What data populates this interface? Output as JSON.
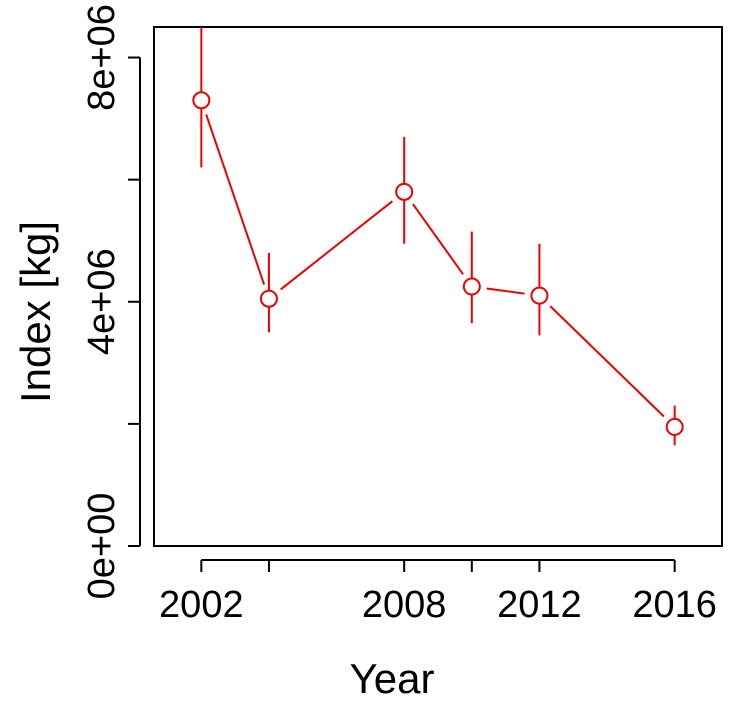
{
  "chart_data": {
    "type": "line",
    "title": "",
    "xlabel": "Year",
    "ylabel": "Index [kg]",
    "xlim": [
      2000.6,
      2017.4
    ],
    "ylim": [
      0,
      8500000
    ],
    "x_ticks": [
      {
        "value": 2002,
        "label": "2002"
      },
      {
        "value": 2004,
        "label": ""
      },
      {
        "value": 2008,
        "label": "2008"
      },
      {
        "value": 2010,
        "label": ""
      },
      {
        "value": 2012,
        "label": "2012"
      },
      {
        "value": 2016,
        "label": "2016"
      }
    ],
    "y_ticks": [
      {
        "value": 0,
        "label": "0e+00"
      },
      {
        "value": 2000000,
        "label": ""
      },
      {
        "value": 4000000,
        "label": "4e+06"
      },
      {
        "value": 6000000,
        "label": ""
      },
      {
        "value": 8000000,
        "label": "8e+06"
      }
    ],
    "grid": false,
    "series": [
      {
        "color": "#ee0000",
        "marker": "open-circle",
        "points": [
          {
            "x": 2002,
            "y": 7300000,
            "lower": 6200000,
            "upper": 8500000
          },
          {
            "x": 2004,
            "y": 4050000,
            "lower": 3500000,
            "upper": 4800000
          },
          {
            "x": 2008,
            "y": 5800000,
            "lower": 4950000,
            "upper": 6700000
          },
          {
            "x": 2010,
            "y": 4250000,
            "lower": 3650000,
            "upper": 5150000
          },
          {
            "x": 2012,
            "y": 4100000,
            "lower": 3450000,
            "upper": 4950000
          },
          {
            "x": 2016,
            "y": 1950000,
            "lower": 1650000,
            "upper": 2300000
          }
        ]
      }
    ]
  }
}
